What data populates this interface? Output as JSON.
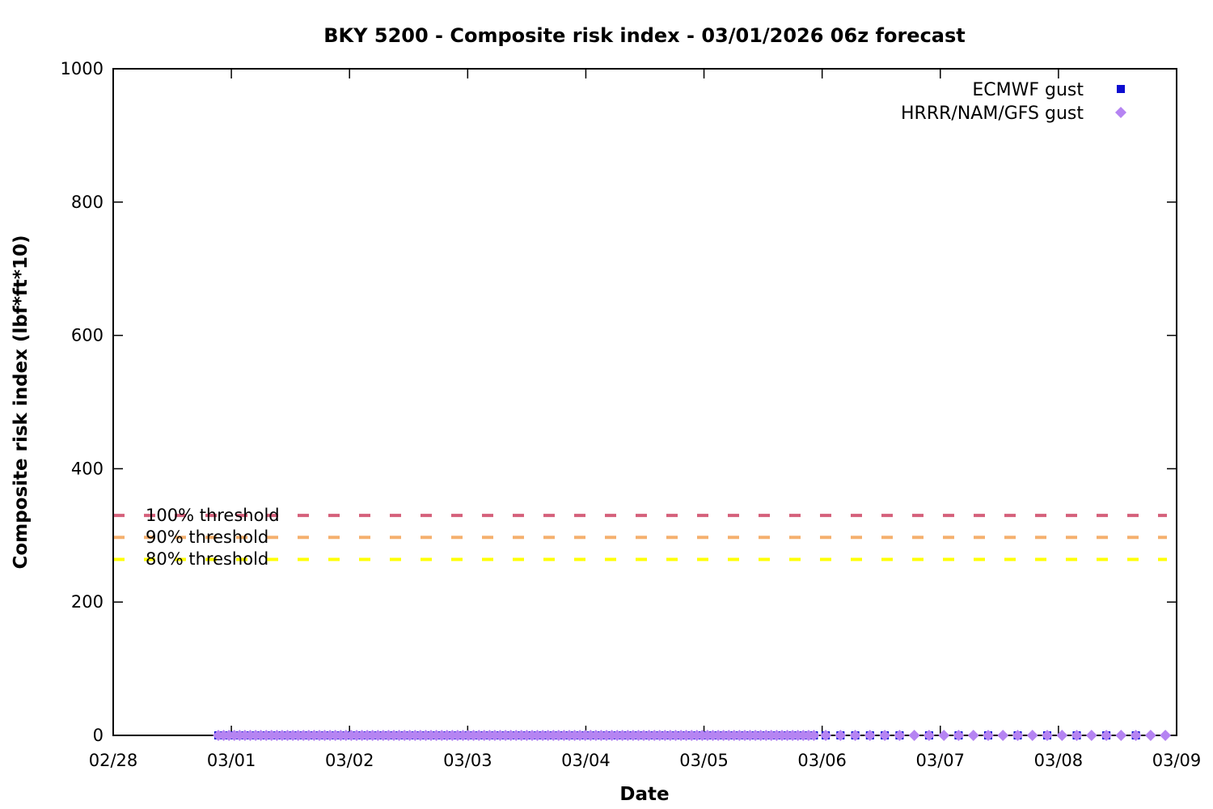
{
  "chart_data": {
    "type": "scatter",
    "title": "BKY 5200 - Composite risk index - 03/01/2026 06z forecast",
    "xlabel": "Date",
    "ylabel": "Composite risk index (lbf*ft*10)",
    "x_tick_labels": [
      "02/28",
      "03/01",
      "03/02",
      "03/03",
      "03/04",
      "03/05",
      "03/06",
      "03/07",
      "03/08",
      "03/09"
    ],
    "y_tick_labels": [
      "0",
      "200",
      "400",
      "600",
      "800",
      "1000"
    ],
    "y_ticks": [
      0,
      200,
      400,
      600,
      800,
      1000
    ],
    "ylim": [
      0,
      1000
    ],
    "xlim_days": [
      0,
      9
    ],
    "x_axis_origin": "02/28",
    "grid": false,
    "legend_position": "top-right-inside",
    "thresholds": [
      {
        "label": "100% threshold",
        "value": 330,
        "color": "#d5607b"
      },
      {
        "label": "90% threshold",
        "value": 297,
        "color": "#f5b06e"
      },
      {
        "label": "80% threshold",
        "value": 264,
        "color": "#ffff00"
      }
    ],
    "legend": {
      "entries": [
        {
          "label": "ECMWF gust",
          "marker": "square",
          "color": "#0d0dd0"
        },
        {
          "label": "HRRR/NAM/GFS gust",
          "marker": "diamond",
          "color": "#b584f2"
        }
      ]
    },
    "series": [
      {
        "name": "ECMWF gust",
        "marker": "square",
        "color": "#0d0dd0",
        "value": 0,
        "segments": [
          {
            "start_day": 0.89,
            "end_day": 5.94,
            "step_days": 0.045
          },
          {
            "start_day": 6.03,
            "end_day": 6.66,
            "step_days": 0.125
          },
          {
            "start_day": 6.905,
            "end_day": 8.655,
            "step_days": 0.25
          }
        ]
      },
      {
        "name": "HRRR/NAM/GFS gust",
        "marker": "diamond",
        "color": "#b584f2",
        "value": 0,
        "segments": [
          {
            "start_day": 0.89,
            "end_day": 5.94,
            "step_days": 0.045
          },
          {
            "start_day": 6.03,
            "end_day": 8.905,
            "step_days": 0.125
          }
        ]
      }
    ]
  }
}
